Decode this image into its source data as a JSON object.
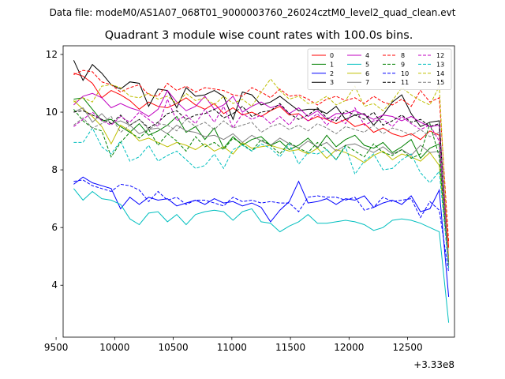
{
  "chart_data": {
    "type": "line",
    "suptitle": "Data file: modeM0/AS1A07_068T01_9000003760_26024cztM0_level2_quad_clean.evt",
    "title": "Quadrant 3 module wise count rates with 100.0s bins.",
    "xlabel": "",
    "ylabel": "",
    "x_offset_label": "+3.33e8",
    "xlim": [
      9560,
      12900
    ],
    "ylim": [
      2.2,
      12.3
    ],
    "xticks": [
      9500,
      10000,
      10500,
      11000,
      11500,
      12000,
      12500
    ],
    "yticks": [
      4,
      6,
      8,
      10,
      12
    ],
    "x": [
      9650,
      9730,
      9810,
      9890,
      9970,
      10050,
      10130,
      10210,
      10290,
      10370,
      10450,
      10530,
      10610,
      10690,
      10770,
      10850,
      10930,
      11010,
      11090,
      11170,
      11250,
      11330,
      11410,
      11490,
      11570,
      11650,
      11730,
      11810,
      11890,
      11970,
      12050,
      12130,
      12210,
      12290,
      12370,
      12450,
      12530,
      12610,
      12690,
      12770,
      12850
    ],
    "legend": {
      "position": "top-right",
      "ncol": 4
    },
    "series": [
      {
        "name": "0",
        "color": "#ff0000",
        "dash": "solid",
        "values": [
          11.35,
          11.25,
          11.0,
          10.5,
          10.75,
          10.6,
          10.4,
          10.1,
          10.35,
          10.2,
          10.15,
          10.3,
          10.5,
          10.25,
          10.1,
          10.3,
          9.95,
          10.15,
          9.9,
          10.0,
          9.85,
          10.05,
          10.2,
          9.9,
          9.95,
          9.7,
          9.85,
          9.75,
          9.6,
          9.75,
          9.5,
          9.6,
          9.3,
          9.45,
          9.25,
          9.15,
          9.25,
          9.05,
          9.35,
          9.2,
          5.3
        ]
      },
      {
        "name": "1",
        "color": "#008000",
        "dash": "solid",
        "values": [
          10.45,
          10.5,
          10.1,
          9.7,
          9.75,
          9.5,
          9.3,
          9.6,
          9.2,
          9.35,
          9.55,
          9.85,
          9.3,
          9.5,
          9.05,
          9.45,
          8.75,
          9.15,
          8.85,
          9.05,
          9.15,
          8.85,
          9.0,
          8.7,
          8.85,
          9.1,
          8.75,
          9.2,
          8.8,
          9.05,
          9.2,
          8.85,
          8.75,
          8.95,
          8.6,
          8.8,
          9.05,
          8.4,
          8.75,
          8.9,
          4.9
        ]
      },
      {
        "name": "2",
        "color": "#0000ff",
        "dash": "solid",
        "values": [
          7.5,
          7.75,
          7.55,
          7.45,
          7.35,
          6.65,
          7.05,
          6.8,
          7.05,
          6.95,
          7.0,
          6.75,
          6.85,
          6.95,
          6.8,
          7.0,
          6.85,
          6.9,
          6.75,
          6.85,
          6.7,
          6.2,
          6.6,
          6.9,
          7.6,
          6.85,
          6.9,
          7.0,
          6.8,
          7.0,
          6.95,
          7.1,
          6.7,
          6.85,
          6.95,
          6.8,
          7.1,
          6.55,
          6.65,
          7.3,
          3.6
        ]
      },
      {
        "name": "3",
        "color": "#000000",
        "dash": "solid",
        "values": [
          11.8,
          11.1,
          11.65,
          11.35,
          10.95,
          10.8,
          11.05,
          11.0,
          10.2,
          10.8,
          10.75,
          10.15,
          10.85,
          10.55,
          10.6,
          10.75,
          10.55,
          9.75,
          10.7,
          10.6,
          10.25,
          10.35,
          10.55,
          10.3,
          10.05,
          10.1,
          10.1,
          9.95,
          10.2,
          9.75,
          9.9,
          9.95,
          9.55,
          9.9,
          10.35,
          10.6,
          9.95,
          9.5,
          9.65,
          9.7,
          4.7
        ]
      },
      {
        "name": "4",
        "color": "#c000c0",
        "dash": "solid",
        "values": [
          10.25,
          10.55,
          10.65,
          10.5,
          10.15,
          10.3,
          10.15,
          10.05,
          9.85,
          10.1,
          10.75,
          10.35,
          10.05,
          10.2,
          10.55,
          10.1,
          10.25,
          10.55,
          10.0,
          10.2,
          10.35,
          10.15,
          10.25,
          9.95,
          10.15,
          9.85,
          10.05,
          9.75,
          9.95,
          9.95,
          10.05,
          9.9,
          9.75,
          9.9,
          9.85,
          9.7,
          9.85,
          9.65,
          9.5,
          9.55,
          4.9
        ]
      },
      {
        "name": "5",
        "color": "#00bfbf",
        "dash": "solid",
        "values": [
          7.35,
          6.95,
          7.25,
          7.0,
          6.95,
          6.8,
          6.3,
          6.1,
          6.5,
          6.55,
          6.2,
          6.45,
          6.1,
          6.45,
          6.55,
          6.6,
          6.55,
          6.25,
          6.55,
          6.65,
          6.2,
          6.15,
          5.85,
          6.05,
          6.2,
          6.45,
          6.15,
          6.15,
          6.2,
          6.25,
          6.2,
          6.1,
          5.9,
          6.0,
          6.25,
          6.3,
          6.25,
          6.15,
          6.0,
          5.85,
          2.7
        ]
      },
      {
        "name": "6",
        "color": "#bfbf00",
        "dash": "solid",
        "values": [
          10.4,
          10.1,
          9.85,
          9.5,
          8.9,
          9.55,
          9.35,
          9.0,
          9.1,
          8.95,
          8.8,
          8.95,
          8.85,
          8.7,
          8.9,
          8.65,
          8.8,
          8.55,
          8.95,
          8.75,
          8.8,
          8.85,
          8.75,
          8.65,
          8.7,
          8.55,
          8.75,
          8.4,
          8.7,
          8.6,
          8.45,
          8.25,
          8.5,
          8.65,
          8.35,
          8.55,
          8.45,
          8.3,
          8.6,
          8.15,
          4.8
        ]
      },
      {
        "name": "7",
        "color": "#808080",
        "dash": "solid",
        "values": [
          10.0,
          10.15,
          9.65,
          9.95,
          9.6,
          9.7,
          9.55,
          9.25,
          9.4,
          9.45,
          9.25,
          9.55,
          9.35,
          9.3,
          9.15,
          9.2,
          9.05,
          9.25,
          8.95,
          9.2,
          9.0,
          8.85,
          9.1,
          8.9,
          8.75,
          9.0,
          8.8,
          8.95,
          8.65,
          8.85,
          8.9,
          8.75,
          8.6,
          8.8,
          8.55,
          8.7,
          8.5,
          8.85,
          8.6,
          8.65,
          4.7
        ]
      },
      {
        "name": "8",
        "color": "#ff0000",
        "dash": "dashed",
        "values": [
          11.3,
          11.45,
          11.4,
          11.05,
          10.95,
          10.7,
          10.85,
          10.95,
          10.6,
          10.55,
          11.0,
          10.75,
          10.9,
          10.7,
          10.85,
          10.8,
          10.75,
          10.6,
          10.55,
          10.85,
          10.7,
          10.5,
          10.8,
          10.55,
          10.6,
          10.45,
          10.25,
          10.45,
          10.55,
          10.4,
          10.5,
          10.3,
          10.55,
          10.35,
          10.25,
          10.45,
          10.2,
          10.75,
          10.35,
          10.5,
          5.5
        ]
      },
      {
        "name": "9",
        "color": "#008000",
        "dash": "dashed",
        "values": [
          10.1,
          9.7,
          9.45,
          9.35,
          8.45,
          8.95,
          9.3,
          9.1,
          9.4,
          8.85,
          9.25,
          9.0,
          8.65,
          9.15,
          8.8,
          8.95,
          8.7,
          9.1,
          8.9,
          8.65,
          9.05,
          8.85,
          8.55,
          8.95,
          8.75,
          8.6,
          8.95,
          8.7,
          8.35,
          8.85,
          8.65,
          8.45,
          8.9,
          8.6,
          8.5,
          8.7,
          8.4,
          8.55,
          9.6,
          8.45,
          4.75
        ]
      },
      {
        "name": "10",
        "color": "#0000ff",
        "dash": "dashed",
        "values": [
          7.6,
          7.65,
          7.45,
          7.35,
          7.25,
          7.5,
          7.45,
          7.3,
          6.9,
          7.25,
          6.95,
          7.05,
          6.8,
          6.95,
          6.95,
          6.85,
          6.75,
          7.05,
          6.9,
          6.95,
          6.85,
          6.9,
          6.85,
          6.85,
          6.55,
          7.05,
          7.1,
          7.05,
          7.05,
          6.95,
          7.05,
          6.6,
          6.7,
          7.05,
          6.9,
          6.95,
          7.0,
          6.35,
          6.9,
          6.6,
          4.45
        ]
      },
      {
        "name": "11",
        "color": "#000000",
        "dash": "dashed",
        "values": [
          10.0,
          10.05,
          9.9,
          9.75,
          9.6,
          9.9,
          9.55,
          9.75,
          9.45,
          9.65,
          9.95,
          10.05,
          9.75,
          9.9,
          9.95,
          10.1,
          9.8,
          9.95,
          10.2,
          9.85,
          10.0,
          10.05,
          10.3,
          9.95,
          9.75,
          9.9,
          10.15,
          9.8,
          9.7,
          10.05,
          9.9,
          9.75,
          10.0,
          9.55,
          9.7,
          9.9,
          9.65,
          9.75,
          9.5,
          9.6,
          4.6
        ]
      },
      {
        "name": "12",
        "color": "#c000c0",
        "dash": "dashed",
        "values": [
          9.5,
          9.75,
          10.0,
          9.7,
          9.55,
          9.85,
          9.65,
          10.0,
          9.75,
          9.5,
          10.45,
          9.7,
          9.9,
          9.6,
          10.1,
          9.65,
          10.2,
          9.45,
          9.95,
          9.75,
          9.9,
          9.6,
          9.85,
          9.55,
          9.95,
          9.7,
          9.95,
          9.55,
          9.85,
          9.6,
          10.15,
          9.55,
          9.7,
          9.75,
          9.5,
          9.85,
          9.6,
          9.4,
          9.55,
          9.0,
          4.9
        ]
      },
      {
        "name": "13",
        "color": "#00bfbf",
        "dash": "dashed",
        "values": [
          8.95,
          8.95,
          9.45,
          8.8,
          8.55,
          9.0,
          8.3,
          8.45,
          8.85,
          8.3,
          8.5,
          8.65,
          8.35,
          8.05,
          8.15,
          8.55,
          8.05,
          8.7,
          8.85,
          8.65,
          8.9,
          8.75,
          8.45,
          8.9,
          8.2,
          8.6,
          8.55,
          8.7,
          8.35,
          8.8,
          7.85,
          8.3,
          8.55,
          8.0,
          8.05,
          8.35,
          8.55,
          7.9,
          7.55,
          7.95,
          4.6
        ]
      },
      {
        "name": "14",
        "color": "#bfbf00",
        "dash": "dashed",
        "values": [
          10.35,
          10.5,
          10.35,
          10.9,
          10.95,
          10.85,
          10.55,
          10.5,
          10.65,
          10.45,
          10.55,
          10.3,
          10.65,
          10.4,
          10.5,
          10.25,
          10.55,
          10.3,
          10.45,
          10.2,
          10.7,
          11.15,
          10.75,
          10.45,
          10.55,
          10.3,
          10.35,
          10.55,
          10.25,
          10.4,
          10.9,
          10.2,
          10.3,
          10.05,
          10.4,
          10.85,
          10.6,
          10.4,
          10.25,
          10.9,
          4.9
        ]
      },
      {
        "name": "15",
        "color": "#808080",
        "dash": "dashed",
        "values": [
          9.55,
          9.8,
          9.45,
          9.6,
          9.85,
          9.3,
          9.55,
          9.75,
          9.4,
          9.6,
          9.55,
          9.35,
          9.75,
          9.5,
          9.65,
          9.4,
          9.7,
          9.45,
          9.55,
          9.65,
          9.3,
          9.5,
          9.6,
          9.4,
          9.55,
          9.35,
          9.6,
          9.45,
          9.25,
          9.5,
          9.4,
          9.3,
          9.55,
          9.25,
          9.45,
          9.35,
          9.2,
          9.4,
          9.15,
          9.3,
          4.75
        ]
      }
    ]
  }
}
